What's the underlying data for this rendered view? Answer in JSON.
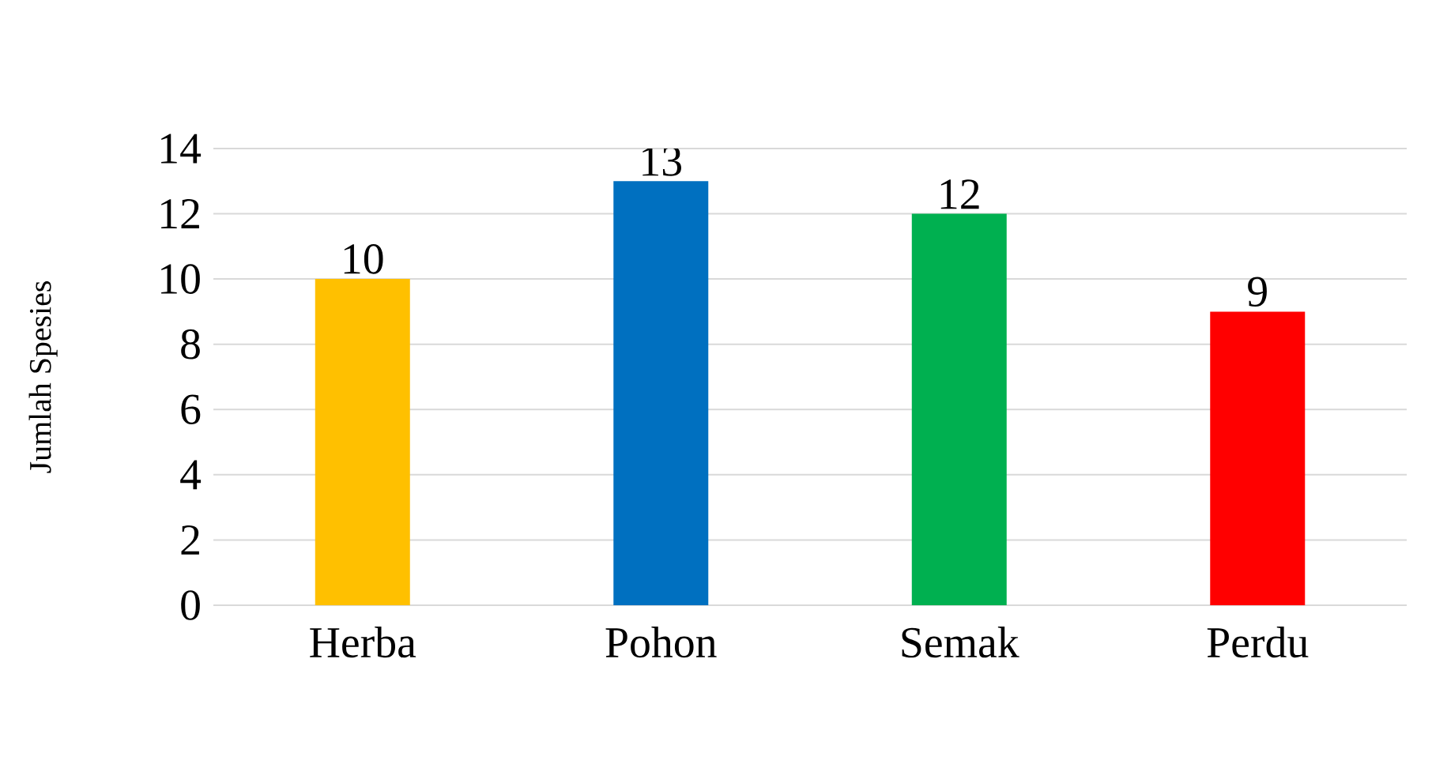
{
  "chart_data": {
    "type": "bar",
    "ylabel": "Jumlah Spesies",
    "categories": [
      "Herba",
      "Pohon",
      "Semak",
      "Perdu"
    ],
    "values": [
      10,
      13,
      12,
      9
    ],
    "colors": [
      "#ffc000",
      "#0070c0",
      "#00b050",
      "#ff0000"
    ],
    "ylim": [
      0,
      14
    ],
    "yticks": [
      0,
      2,
      4,
      6,
      8,
      10,
      12,
      14
    ],
    "grid": "y",
    "data_labels": true
  }
}
